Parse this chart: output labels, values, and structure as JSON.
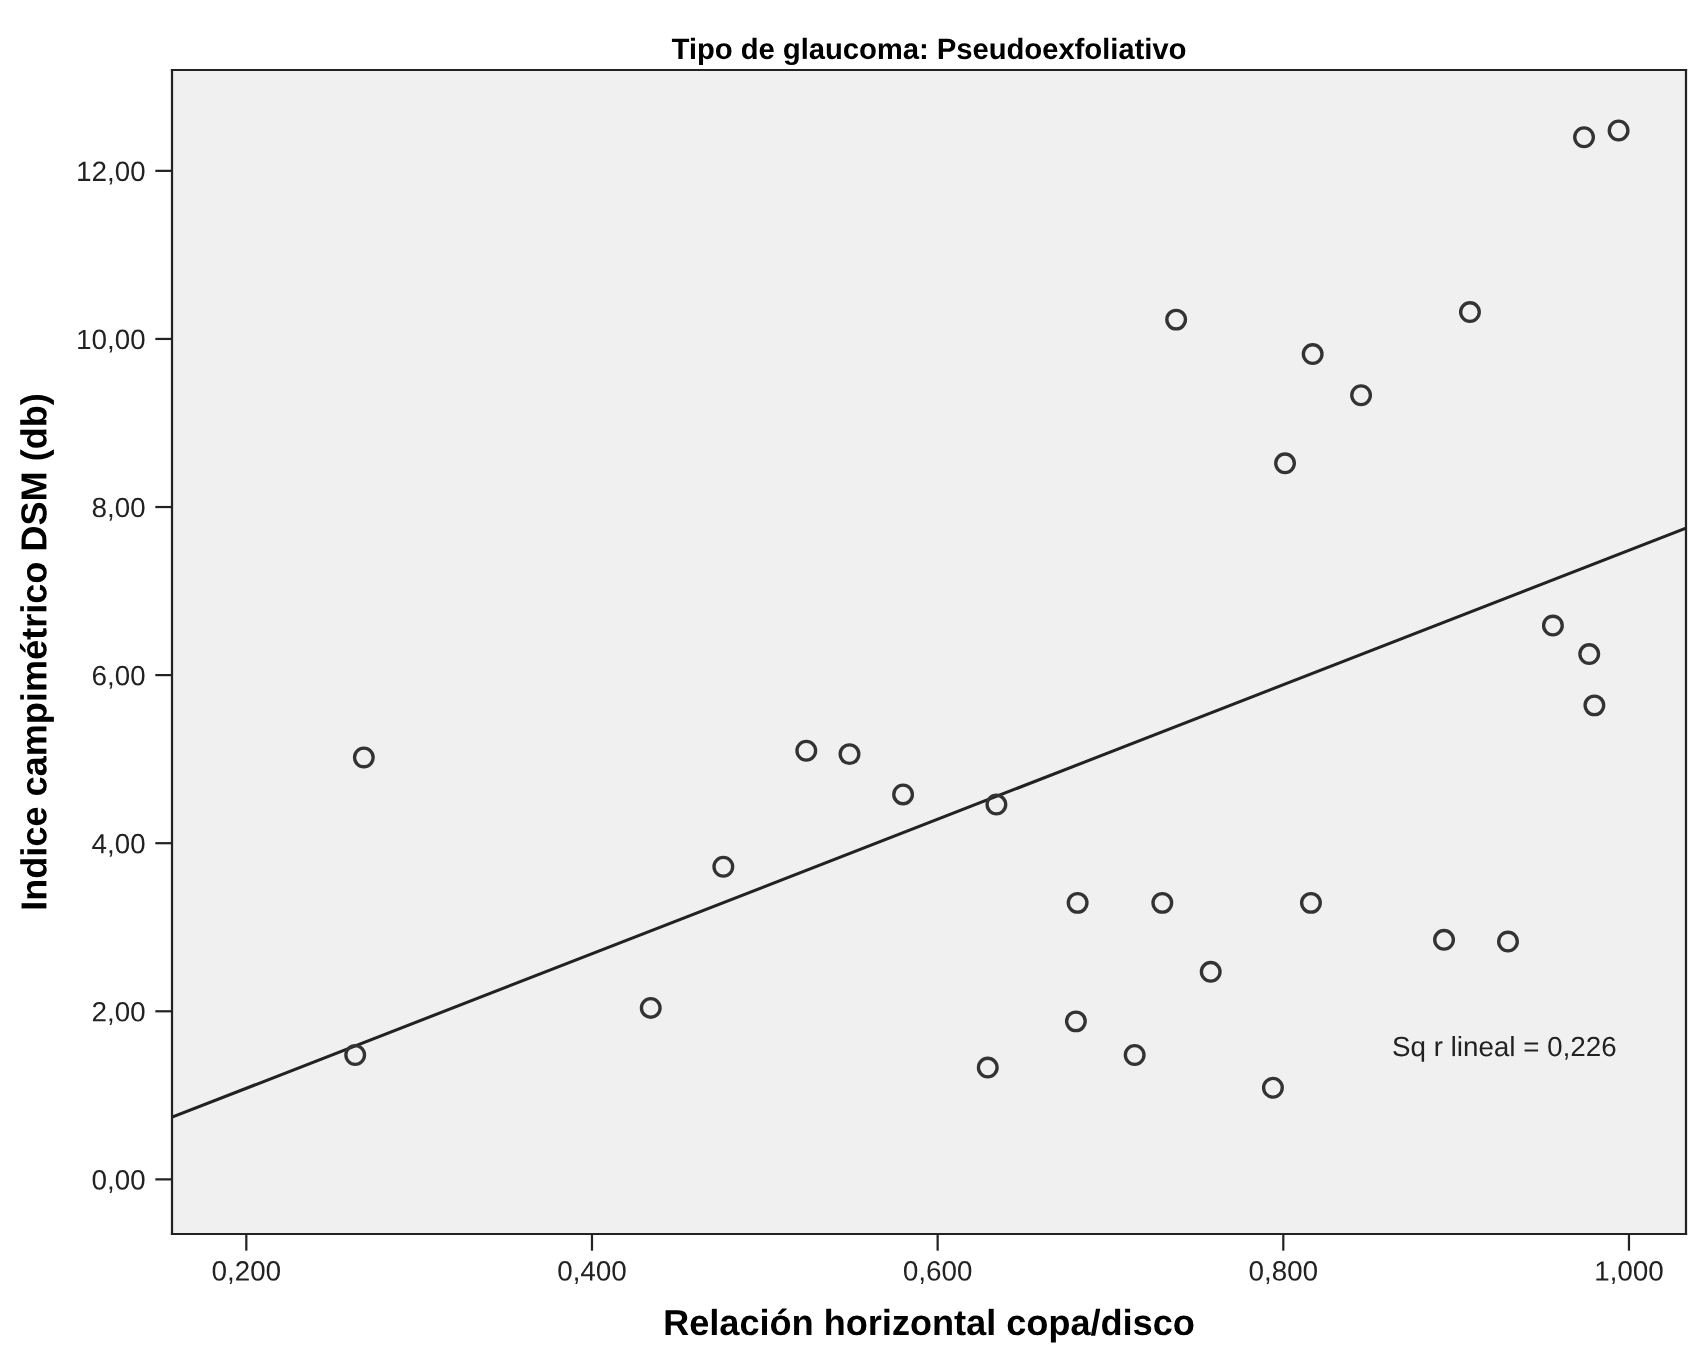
{
  "chart_data": {
    "type": "scatter",
    "title": "Tipo de glaucoma: Pseudoexfoliativo",
    "xlabel": "Relación horizontal copa/disco",
    "ylabel": "Indice campimétrico DSM (db)",
    "xlim": [
      0.157,
      1.033
    ],
    "ylim": [
      -0.65,
      13.2
    ],
    "xticks": [
      {
        "value": 0.2,
        "label": "0,200"
      },
      {
        "value": 0.4,
        "label": "0,400"
      },
      {
        "value": 0.6,
        "label": "0,600"
      },
      {
        "value": 0.8,
        "label": "0,800"
      },
      {
        "value": 1.0,
        "label": "1,000"
      }
    ],
    "yticks": [
      {
        "value": 0,
        "label": "0,00"
      },
      {
        "value": 2,
        "label": "2,00"
      },
      {
        "value": 4,
        "label": "4,00"
      },
      {
        "value": 6,
        "label": "6,00"
      },
      {
        "value": 8,
        "label": "8,00"
      },
      {
        "value": 10,
        "label": "10,00"
      },
      {
        "value": 12,
        "label": "12,00"
      }
    ],
    "grid": false,
    "legend": false,
    "series": [
      {
        "marker": "circle",
        "color": "#333333",
        "x": [
          0.268,
          0.263,
          0.434,
          0.476,
          0.524,
          0.549,
          0.58,
          0.634,
          0.681,
          0.73,
          0.816,
          0.758,
          0.68,
          0.714,
          0.629,
          0.794,
          0.893,
          0.93,
          0.977,
          0.98,
          0.974,
          0.994,
          0.738,
          0.908,
          0.817,
          0.845,
          0.801,
          0.956
        ],
        "values": [
          5.02,
          1.48,
          2.04,
          3.72,
          5.1,
          5.06,
          4.58,
          4.46,
          3.29,
          3.29,
          3.29,
          2.47,
          1.88,
          1.48,
          1.33,
          1.09,
          2.85,
          2.83,
          6.25,
          5.64,
          12.4,
          12.48,
          10.23,
          10.32,
          9.82,
          9.33,
          8.52,
          6.59
        ]
      },
      {
        "type": "line",
        "color": "#222222",
        "x": [
          0.157,
          1.033
        ],
        "values": [
          0.74,
          7.75
        ]
      }
    ],
    "annotations": [
      "Sq r lineal = 0,226"
    ]
  }
}
